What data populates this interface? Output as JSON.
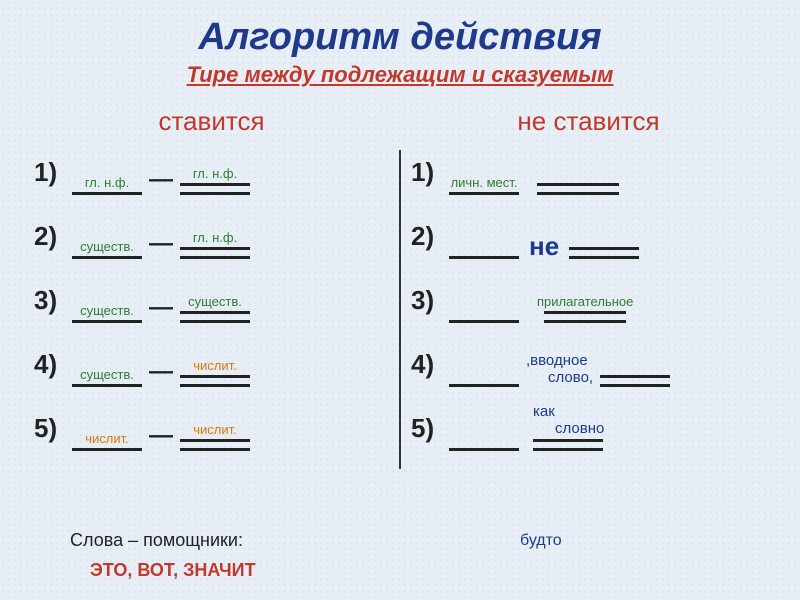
{
  "title": "Алгоритм действия",
  "subtitle": "Тире между подлежащим и сказуемым",
  "left": {
    "header": "ставится",
    "rows": [
      {
        "num": "1)",
        "l": "гл. н.ф.",
        "r": "гл. н.ф."
      },
      {
        "num": "2)",
        "l": "существ.",
        "r": "гл. н.ф."
      },
      {
        "num": "3)",
        "l": "существ.",
        "r": "существ."
      },
      {
        "num": "4)",
        "l": "существ.",
        "r": "числит."
      },
      {
        "num": "5)",
        "l": "числит.",
        "r": "числит."
      }
    ]
  },
  "right": {
    "header": "не ставится",
    "rows": {
      "n1": "1)",
      "r1l": "личн. мест.",
      "n2": "2)",
      "mid2": "не",
      "n3": "3)",
      "r3r": "прилагательное",
      "n4": "4)",
      "mid4a": ",вводное",
      "mid4b": "слово,",
      "n5": "5)",
      "mid5a": "как",
      "mid5b": "словно"
    }
  },
  "bottom": {
    "helpers_label": "Слова – помощники:",
    "helpers_words": "ЭТО, ВОТ, ЗНАЧИТ",
    "extra": "будто"
  },
  "colors": {
    "title": "#1e3a8a",
    "red": "#c0392b",
    "green": "#2e7d32",
    "blue": "#1e3a8a",
    "orange": "#d9770b"
  }
}
